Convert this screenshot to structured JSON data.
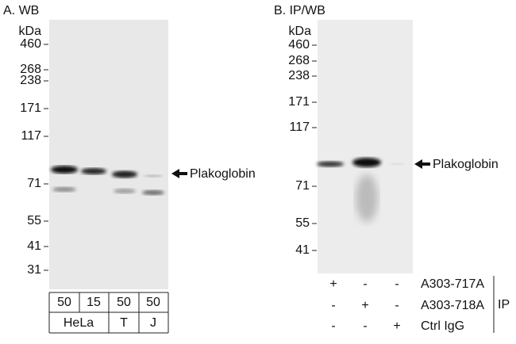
{
  "panel_a": {
    "title": "A. WB",
    "unit": "kDa",
    "markers": [
      "460",
      "268",
      "238",
      "171",
      "117",
      "71",
      "55",
      "41",
      "31"
    ],
    "target": "Plakoglobin",
    "loads": [
      "50",
      "15",
      "50",
      "50"
    ],
    "cell_lines": [
      "HeLa",
      "T",
      "J"
    ]
  },
  "panel_b": {
    "title": "B. IP/WB",
    "unit": "kDa",
    "markers": [
      "460",
      "268",
      "238",
      "171",
      "117",
      "71",
      "55",
      "41"
    ],
    "target": "Plakoglobin",
    "rows": [
      {
        "marks": [
          "+",
          "-",
          "-"
        ],
        "label": "A303-717A"
      },
      {
        "marks": [
          "-",
          "+",
          "-"
        ],
        "label": "A303-718A"
      },
      {
        "marks": [
          "-",
          "-",
          "+"
        ],
        "label": "Ctrl IgG"
      }
    ],
    "group_label": "IP"
  }
}
